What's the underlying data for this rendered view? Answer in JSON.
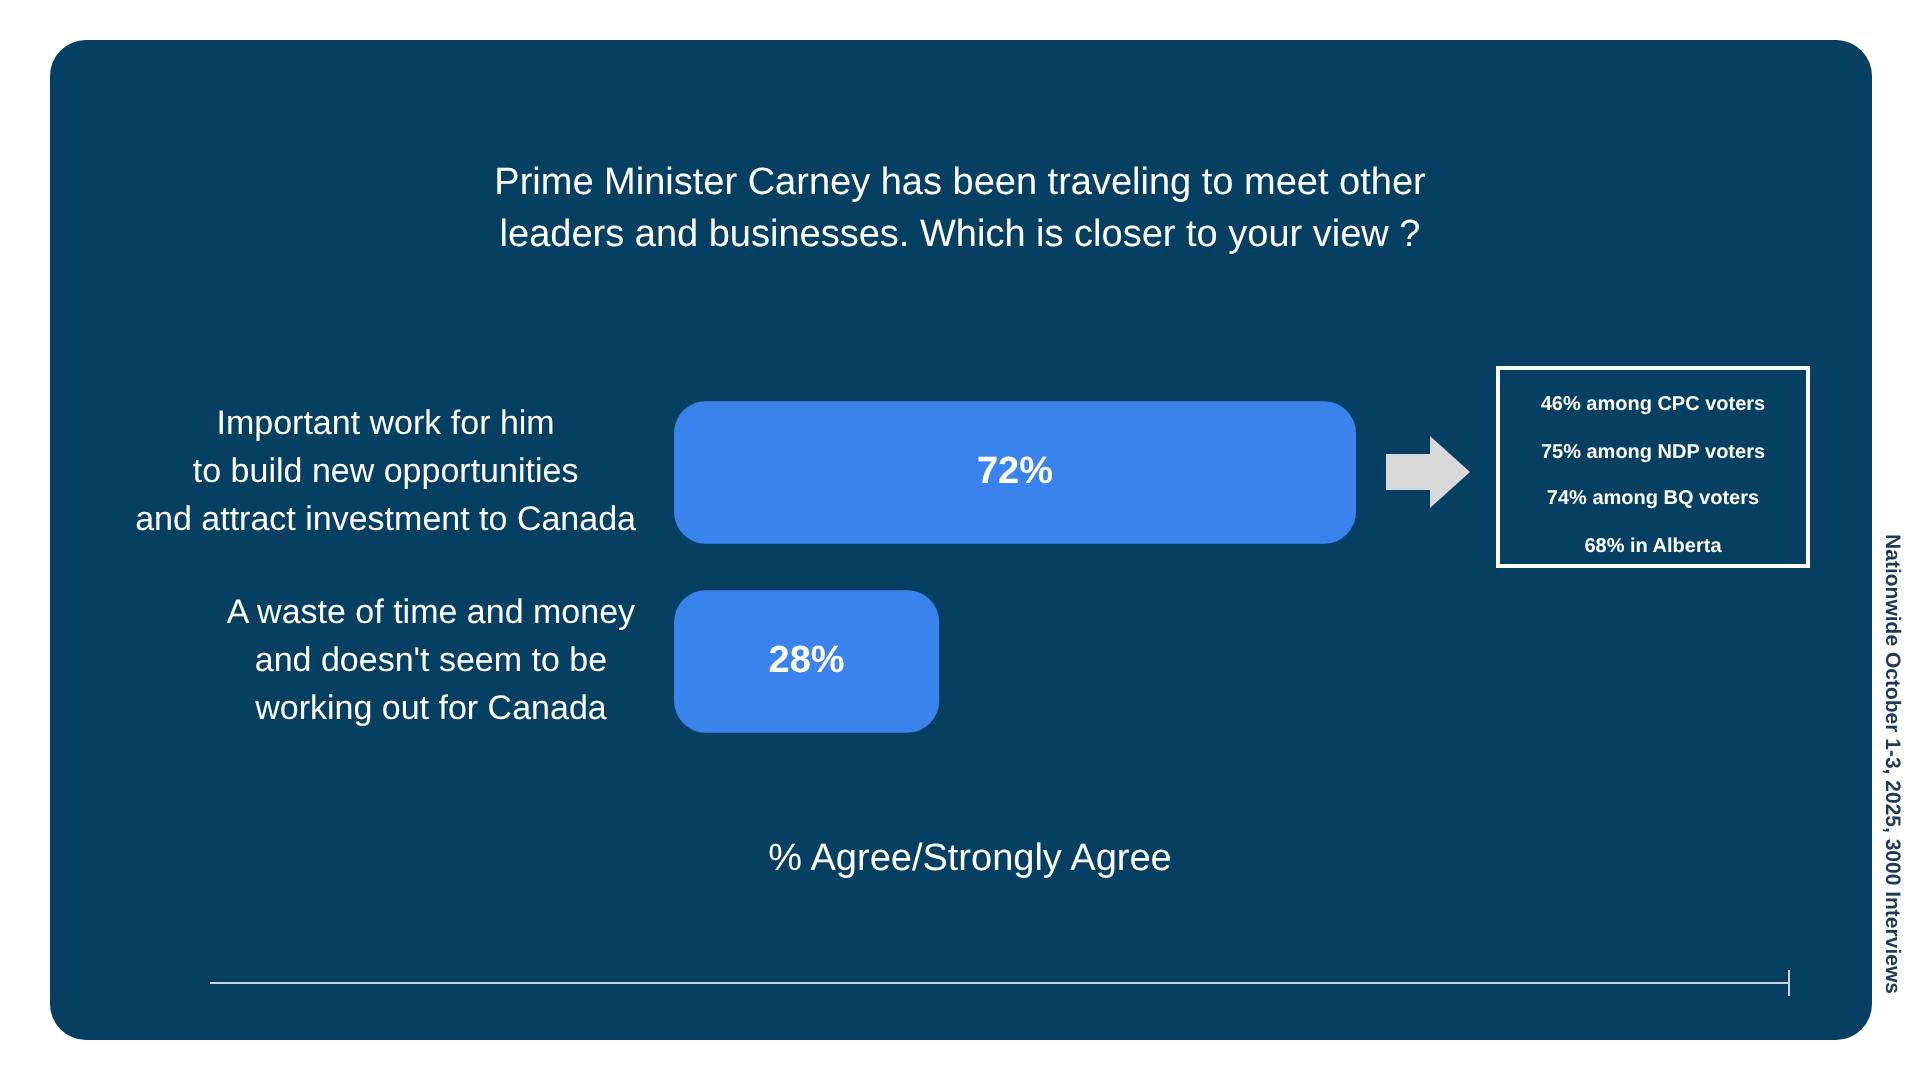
{
  "chart_data": {
    "type": "bar",
    "orientation": "horizontal",
    "title": "Prime Minister Carney has been traveling to meet other\nleaders and businesses. Which is closer to your view ?",
    "xlabel": "% Agree/Strongly Agree",
    "categories": [
      "Important work for him\nto build new opportunities\nand attract investment to Canada",
      "A waste of time and money\nand doesn't seem to be\nworking out for Canada"
    ],
    "values": [
      72,
      28
    ],
    "value_labels": [
      "72%",
      "28%"
    ],
    "color": "#3b83ec",
    "annotations": [
      "46% among CPC voters\n75% among NDP voters\n74% among BQ voters\n68% in Alberta",
      "Nationwide October 1-3, 2025, 3000 Interviews"
    ]
  }
}
